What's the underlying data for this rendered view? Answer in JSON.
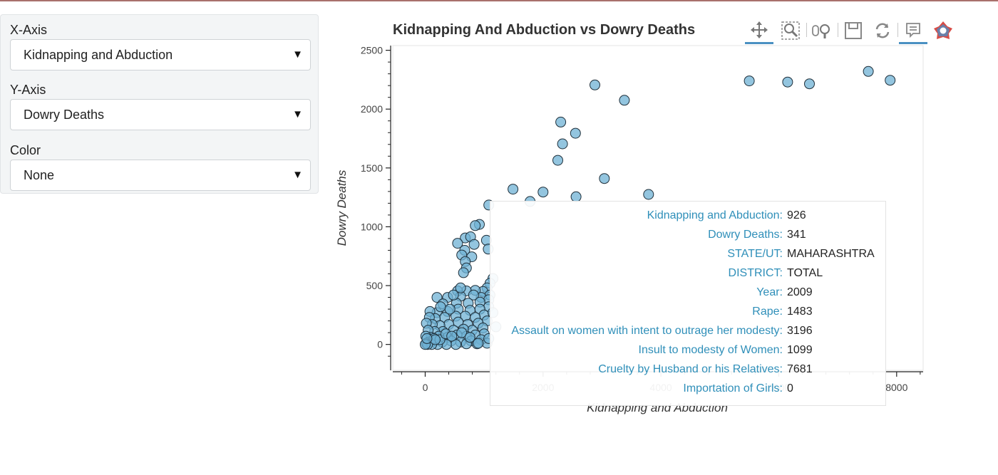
{
  "widgets": {
    "x_axis": {
      "label": "X-Axis",
      "value": "Kidnapping and Abduction"
    },
    "y_axis": {
      "label": "Y-Axis",
      "value": "Dowry Deaths"
    },
    "color": {
      "label": "Color",
      "value": "None"
    }
  },
  "toolbar": {
    "tools": [
      "pan-icon",
      "box-zoom-icon",
      "wheel-zoom-icon",
      "save-icon",
      "reset-icon",
      "hover-icon",
      "bokeh-logo-icon"
    ],
    "active": [
      "pan-icon",
      "hover-icon"
    ]
  },
  "tooltip": {
    "rows": [
      {
        "key": "Kidnapping and Abduction:",
        "value": "926"
      },
      {
        "key": "Dowry Deaths:",
        "value": "341"
      },
      {
        "key": "STATE/UT:",
        "value": "MAHARASHTRA"
      },
      {
        "key": "DISTRICT:",
        "value": "TOTAL"
      },
      {
        "key": "Year:",
        "value": "2009"
      },
      {
        "key": "Rape:",
        "value": "1483"
      },
      {
        "key": "Assault on women with intent to outrage her modesty:",
        "value": "3196"
      },
      {
        "key": "Insult to modesty of Women:",
        "value": "1099"
      },
      {
        "key": "Cruelty by Husband or his Relatives:",
        "value": "7681"
      },
      {
        "key": "Importation of Girls:",
        "value": "0"
      }
    ]
  },
  "colors": {
    "point_fill": "#6fb2d4",
    "point_stroke": "#1f2f3a",
    "tooltip_key": "#2f8fb9"
  },
  "chart_data": {
    "type": "scatter",
    "title": "Kidnapping And Abduction vs Dowry Deaths",
    "xlabel": "Kidnapping and Abduction",
    "ylabel": "Dowry Deaths",
    "xlim": [
      -550,
      8450
    ],
    "ylim": [
      -220,
      2540
    ],
    "xticks": [
      0,
      2000,
      4000,
      6000,
      8000
    ],
    "yticks": [
      0,
      500,
      1000,
      1500,
      2000,
      2500
    ],
    "grid": false,
    "points": [
      [
        7520,
        2320
      ],
      [
        7890,
        2245
      ],
      [
        5500,
        2240
      ],
      [
        6150,
        2230
      ],
      [
        6520,
        2215
      ],
      [
        2880,
        2205
      ],
      [
        3380,
        2075
      ],
      [
        2300,
        1890
      ],
      [
        2550,
        1795
      ],
      [
        2330,
        1705
      ],
      [
        2250,
        1565
      ],
      [
        3040,
        1410
      ],
      [
        1490,
        1320
      ],
      [
        2000,
        1295
      ],
      [
        3790,
        1275
      ],
      [
        2560,
        1255
      ],
      [
        1780,
        1215
      ],
      [
        1080,
        1185
      ],
      [
        920,
        1020
      ],
      [
        850,
        1010
      ],
      [
        680,
        905
      ],
      [
        770,
        915
      ],
      [
        1040,
        885
      ],
      [
        550,
        860
      ],
      [
        830,
        850
      ],
      [
        1070,
        810
      ],
      [
        670,
        800
      ],
      [
        620,
        760
      ],
      [
        790,
        745
      ],
      [
        680,
        705
      ],
      [
        700,
        650
      ],
      [
        650,
        610
      ],
      [
        1150,
        560
      ],
      [
        1100,
        520
      ],
      [
        1050,
        480
      ],
      [
        980,
        450
      ],
      [
        850,
        460
      ],
      [
        700,
        455
      ],
      [
        550,
        455
      ],
      [
        1100,
        420
      ],
      [
        950,
        400
      ],
      [
        820,
        420
      ],
      [
        600,
        410
      ],
      [
        380,
        400
      ],
      [
        200,
        400
      ],
      [
        1080,
        380
      ],
      [
        930,
        360
      ],
      [
        730,
        350
      ],
      [
        530,
        350
      ],
      [
        300,
        345
      ],
      [
        1080,
        320
      ],
      [
        930,
        300
      ],
      [
        760,
        290
      ],
      [
        560,
        300
      ],
      [
        380,
        280
      ],
      [
        200,
        270
      ],
      [
        80,
        280
      ],
      [
        1000,
        250
      ],
      [
        850,
        230
      ],
      [
        680,
        240
      ],
      [
        520,
        240
      ],
      [
        330,
        230
      ],
      [
        170,
        220
      ],
      [
        70,
        230
      ],
      [
        1050,
        200
      ],
      [
        900,
        180
      ],
      [
        720,
        170
      ],
      [
        560,
        190
      ],
      [
        400,
        170
      ],
      [
        250,
        160
      ],
      [
        120,
        170
      ],
      [
        20,
        180
      ],
      [
        980,
        140
      ],
      [
        800,
        120
      ],
      [
        650,
        130
      ],
      [
        480,
        120
      ],
      [
        300,
        110
      ],
      [
        160,
        110
      ],
      [
        50,
        120
      ],
      [
        1000,
        90
      ],
      [
        850,
        80
      ],
      [
        700,
        70
      ],
      [
        540,
        80
      ],
      [
        380,
        60
      ],
      [
        230,
        70
      ],
      [
        100,
        60
      ],
      [
        10,
        70
      ],
      [
        950,
        40
      ],
      [
        780,
        30
      ],
      [
        600,
        20
      ],
      [
        440,
        30
      ],
      [
        290,
        20
      ],
      [
        160,
        30
      ],
      [
        60,
        20
      ],
      [
        20,
        10
      ],
      [
        1050,
        10
      ],
      [
        880,
        5
      ],
      [
        700,
        5
      ],
      [
        520,
        0
      ],
      [
        360,
        0
      ],
      [
        210,
        0
      ],
      [
        110,
        0
      ],
      [
        40,
        0
      ],
      [
        0,
        0
      ],
      [
        150,
        50
      ],
      [
        250,
        40
      ],
      [
        350,
        90
      ],
      [
        450,
        70
      ],
      [
        620,
        100
      ],
      [
        760,
        60
      ],
      [
        900,
        10
      ],
      [
        1080,
        50
      ],
      [
        1200,
        150
      ],
      [
        1150,
        270
      ],
      [
        420,
        300
      ],
      [
        260,
        320
      ],
      [
        600,
        480
      ],
      [
        480,
        420
      ],
      [
        170,
        40
      ],
      [
        30,
        50
      ]
    ]
  }
}
